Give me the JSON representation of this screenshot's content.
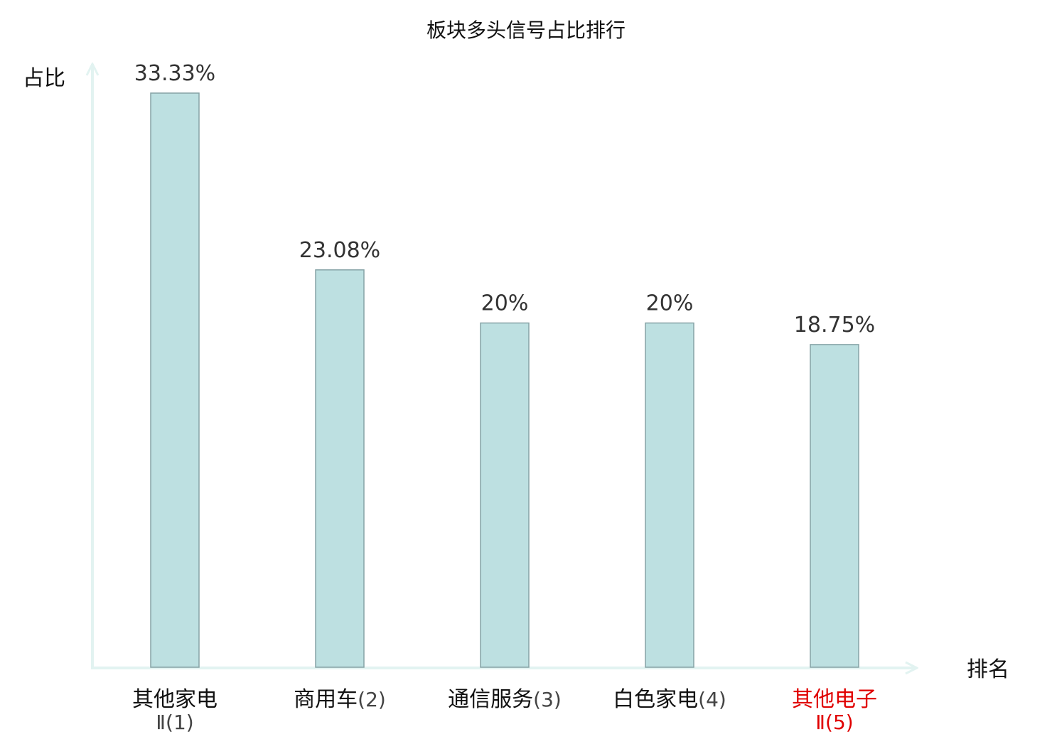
{
  "chart_data": {
    "type": "bar",
    "title": "板块多头信号占比排行",
    "ylabel": "占比",
    "xlabel": "排名",
    "ylim": [
      0,
      33.33
    ],
    "categories": [
      {
        "name": "其他家电",
        "rank_line": "Ⅱ(1)",
        "highlight": false
      },
      {
        "name": "商用车",
        "rank": "(2)",
        "highlight": false
      },
      {
        "name": "通信服务",
        "rank": "(3)",
        "highlight": false
      },
      {
        "name": "白色家电",
        "rank": "(4)",
        "highlight": false
      },
      {
        "name": "其他电子",
        "rank_line": "Ⅱ(5)",
        "highlight": true
      }
    ],
    "values": [
      33.33,
      23.08,
      20,
      20,
      18.75
    ],
    "value_labels": [
      "33.33%",
      "23.08%",
      "20%",
      "20%",
      "18.75%"
    ]
  },
  "colors": {
    "bar_fill": "#bde0e1",
    "bar_stroke": "#86a3a6",
    "axis": "#e2f3f1",
    "highlight": "#e00000",
    "rank_text": "#444444",
    "text": "#111111"
  }
}
